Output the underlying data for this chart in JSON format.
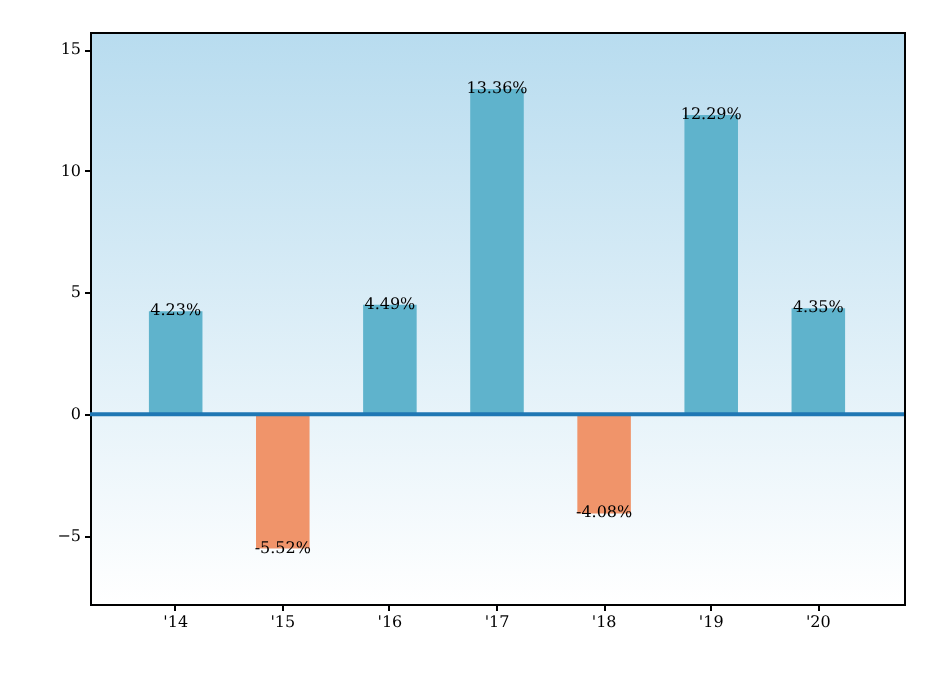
{
  "chart_data": {
    "type": "bar",
    "categories": [
      "'14",
      "'15",
      "'16",
      "'17",
      "'18",
      "'19",
      "'20"
    ],
    "values": [
      4.23,
      -5.52,
      4.49,
      13.36,
      -4.08,
      12.29,
      4.35
    ],
    "colors": [
      "#5fb3cc",
      "#f0946a",
      "#5fb3cc",
      "#5fb3cc",
      "#f0946a",
      "#5fb3cc",
      "#5fb3cc"
    ],
    "value_labels": [
      "4.23%",
      "-5.52%",
      "4.49%",
      "13.36%",
      "-4.08%",
      "12.29%",
      "4.35%"
    ],
    "ylim": [
      -7.8,
      15.7
    ],
    "yticks": [
      {
        "value": -5,
        "label": "−5"
      },
      0,
      5,
      10,
      15
    ],
    "ref_lines": [
      {
        "axis": "y",
        "value": 0,
        "color": "#1f77b4"
      }
    ],
    "grid": false
  }
}
